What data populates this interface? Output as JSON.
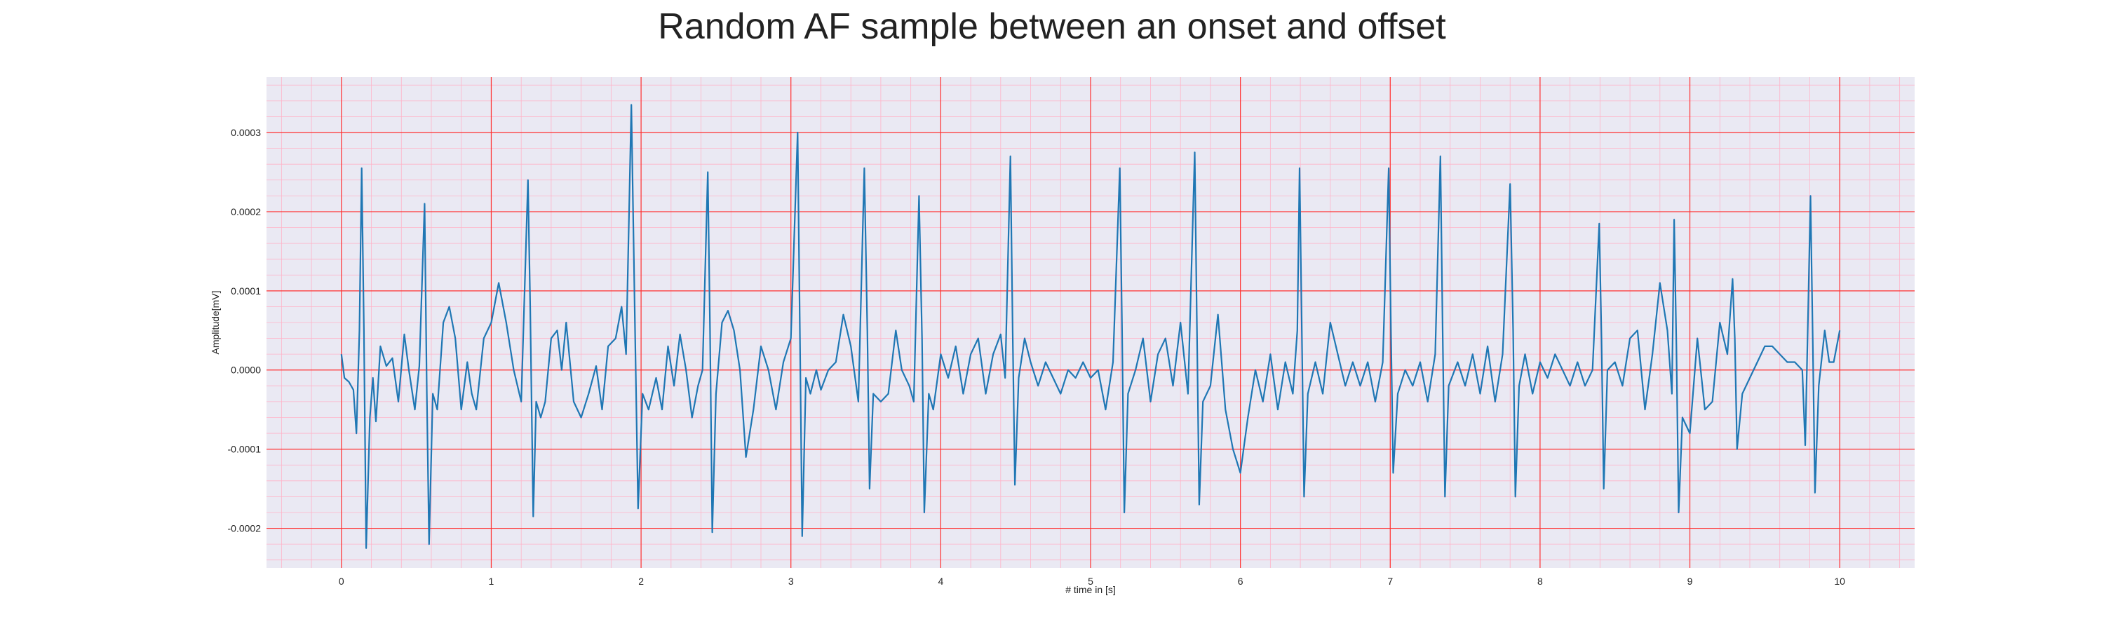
{
  "chart_data": {
    "type": "line",
    "title": "Random AF sample between an onset and offset",
    "xlabel": "# time in [s]",
    "ylabel": "Amplitude[mV]",
    "xlim": [
      -0.5,
      10.5
    ],
    "ylim": [
      -0.00025,
      0.00037
    ],
    "xticks": [
      0,
      1,
      2,
      3,
      4,
      5,
      6,
      7,
      8,
      9,
      10
    ],
    "xtick_labels": [
      "0",
      "1",
      "2",
      "3",
      "4",
      "5",
      "6",
      "7",
      "8",
      "9",
      "10"
    ],
    "yticks": [
      -0.0002,
      -0.0001,
      0.0,
      0.0001,
      0.0002,
      0.0003
    ],
    "ytick_labels": [
      "-0.0002",
      "-0.0001",
      "0.0000",
      "0.0001",
      "0.0002",
      "0.0003"
    ],
    "grid": true,
    "colors": {
      "line": "#1f77b4",
      "major_grid": "#ff3030",
      "minor_grid": "#ffb3c8",
      "background": "#eae9f3"
    },
    "series": [
      {
        "points": [
          [
            0.0,
            2e-05
          ],
          [
            0.02,
            -1e-05
          ],
          [
            0.05,
            -1.5e-05
          ],
          [
            0.08,
            -2.5e-05
          ],
          [
            0.1,
            -8e-05
          ],
          [
            0.12,
            5e-05
          ],
          [
            0.135,
            0.000255
          ],
          [
            0.15,
            5e-05
          ],
          [
            0.165,
            -0.000225
          ],
          [
            0.19,
            -6e-05
          ],
          [
            0.21,
            -1e-05
          ],
          [
            0.23,
            -6.5e-05
          ],
          [
            0.26,
            3e-05
          ],
          [
            0.3,
            5e-06
          ],
          [
            0.34,
            1.5e-05
          ],
          [
            0.38,
            -4e-05
          ],
          [
            0.42,
            4.5e-05
          ],
          [
            0.45,
            0.0
          ],
          [
            0.49,
            -5e-05
          ],
          [
            0.52,
            5e-06
          ],
          [
            0.555,
            0.00021
          ],
          [
            0.57,
            -3e-05
          ],
          [
            0.585,
            -0.00022
          ],
          [
            0.61,
            -3e-05
          ],
          [
            0.64,
            -5e-05
          ],
          [
            0.68,
            6e-05
          ],
          [
            0.72,
            8e-05
          ],
          [
            0.76,
            4e-05
          ],
          [
            0.8,
            -5e-05
          ],
          [
            0.84,
            1e-05
          ],
          [
            0.87,
            -3e-05
          ],
          [
            0.9,
            -5e-05
          ],
          [
            0.95,
            4e-05
          ],
          [
            1.0,
            6e-05
          ],
          [
            1.05,
            0.00011
          ],
          [
            1.1,
            6e-05
          ],
          [
            1.15,
            0.0
          ],
          [
            1.2,
            -4e-05
          ],
          [
            1.245,
            0.00024
          ],
          [
            1.26,
            8e-05
          ],
          [
            1.28,
            -0.000185
          ],
          [
            1.3,
            -4e-05
          ],
          [
            1.33,
            -6e-05
          ],
          [
            1.36,
            -4e-05
          ],
          [
            1.4,
            4e-05
          ],
          [
            1.44,
            5e-05
          ],
          [
            1.47,
            0.0
          ],
          [
            1.5,
            6e-05
          ],
          [
            1.55,
            -4e-05
          ],
          [
            1.6,
            -6e-05
          ],
          [
            1.65,
            -3e-05
          ],
          [
            1.7,
            5e-06
          ],
          [
            1.74,
            -5e-05
          ],
          [
            1.78,
            3e-05
          ],
          [
            1.83,
            4e-05
          ],
          [
            1.87,
            8e-05
          ],
          [
            1.9,
            2e-05
          ],
          [
            1.935,
            0.000335
          ],
          [
            1.96,
            5e-05
          ],
          [
            1.98,
            -0.000175
          ],
          [
            2.01,
            -3e-05
          ],
          [
            2.05,
            -5e-05
          ],
          [
            2.1,
            -1e-05
          ],
          [
            2.14,
            -5e-05
          ],
          [
            2.18,
            3e-05
          ],
          [
            2.22,
            -2e-05
          ],
          [
            2.26,
            4.5e-05
          ],
          [
            2.3,
            0.0
          ],
          [
            2.34,
            -6e-05
          ],
          [
            2.38,
            -2e-05
          ],
          [
            2.41,
            0.0
          ],
          [
            2.445,
            0.00025
          ],
          [
            2.46,
            5e-05
          ],
          [
            2.475,
            -0.000205
          ],
          [
            2.5,
            -3e-05
          ],
          [
            2.54,
            6e-05
          ],
          [
            2.58,
            7.5e-05
          ],
          [
            2.62,
            5e-05
          ],
          [
            2.66,
            0.0
          ],
          [
            2.7,
            -0.00011
          ],
          [
            2.75,
            -5e-05
          ],
          [
            2.8,
            3e-05
          ],
          [
            2.85,
            0.0
          ],
          [
            2.9,
            -5e-05
          ],
          [
            2.95,
            1e-05
          ],
          [
            3.0,
            4e-05
          ],
          [
            3.045,
            0.0003
          ],
          [
            3.06,
            5e-05
          ],
          [
            3.075,
            -0.00021
          ],
          [
            3.1,
            -1e-05
          ],
          [
            3.13,
            -3e-05
          ],
          [
            3.17,
            0.0
          ],
          [
            3.2,
            -2.5e-05
          ],
          [
            3.25,
            0.0
          ],
          [
            3.3,
            1e-05
          ],
          [
            3.35,
            7e-05
          ],
          [
            3.4,
            3e-05
          ],
          [
            3.45,
            -4e-05
          ],
          [
            3.49,
            0.000255
          ],
          [
            3.51,
            5e-05
          ],
          [
            3.525,
            -0.00015
          ],
          [
            3.55,
            -3e-05
          ],
          [
            3.6,
            -4e-05
          ],
          [
            3.65,
            -3e-05
          ],
          [
            3.7,
            5e-05
          ],
          [
            3.74,
            0.0
          ],
          [
            3.79,
            -2e-05
          ],
          [
            3.82,
            -4e-05
          ],
          [
            3.855,
            0.00022
          ],
          [
            3.875,
            4e-05
          ],
          [
            3.89,
            -0.00018
          ],
          [
            3.92,
            -3e-05
          ],
          [
            3.95,
            -5e-05
          ],
          [
            4.0,
            2e-05
          ],
          [
            4.05,
            -1e-05
          ],
          [
            4.1,
            3e-05
          ],
          [
            4.15,
            -3e-05
          ],
          [
            4.2,
            2e-05
          ],
          [
            4.25,
            4e-05
          ],
          [
            4.3,
            -3e-05
          ],
          [
            4.35,
            2e-05
          ],
          [
            4.4,
            4.5e-05
          ],
          [
            4.43,
            -1e-05
          ],
          [
            4.465,
            0.00027
          ],
          [
            4.48,
            5e-05
          ],
          [
            4.495,
            -0.000145
          ],
          [
            4.52,
            -1e-05
          ],
          [
            4.56,
            4e-05
          ],
          [
            4.6,
            1e-05
          ],
          [
            4.65,
            -2e-05
          ],
          [
            4.7,
            1e-05
          ],
          [
            4.75,
            -1e-05
          ],
          [
            4.8,
            -3e-05
          ],
          [
            4.85,
            0.0
          ],
          [
            4.9,
            -1e-05
          ],
          [
            4.95,
            1e-05
          ],
          [
            5.0,
            -1e-05
          ],
          [
            5.05,
            0.0
          ],
          [
            5.1,
            -5e-05
          ],
          [
            5.15,
            1e-05
          ],
          [
            5.195,
            0.000255
          ],
          [
            5.21,
            5e-05
          ],
          [
            5.225,
            -0.00018
          ],
          [
            5.25,
            -3e-05
          ],
          [
            5.3,
            0.0
          ],
          [
            5.35,
            4e-05
          ],
          [
            5.4,
            -4e-05
          ],
          [
            5.45,
            2e-05
          ],
          [
            5.5,
            4e-05
          ],
          [
            5.55,
            -2e-05
          ],
          [
            5.6,
            6e-05
          ],
          [
            5.65,
            -3e-05
          ],
          [
            5.695,
            0.000275
          ],
          [
            5.71,
            5e-05
          ],
          [
            5.725,
            -0.00017
          ],
          [
            5.75,
            -4e-05
          ],
          [
            5.8,
            -2e-05
          ],
          [
            5.85,
            7e-05
          ],
          [
            5.9,
            -5e-05
          ],
          [
            5.95,
            -0.0001
          ],
          [
            6.0,
            -0.00013
          ],
          [
            6.05,
            -6e-05
          ],
          [
            6.1,
            0.0
          ],
          [
            6.15,
            -4e-05
          ],
          [
            6.2,
            2e-05
          ],
          [
            6.25,
            -5e-05
          ],
          [
            6.3,
            1e-05
          ],
          [
            6.35,
            -3e-05
          ],
          [
            6.38,
            5e-05
          ],
          [
            6.395,
            0.000255
          ],
          [
            6.41,
            5e-05
          ],
          [
            6.425,
            -0.00016
          ],
          [
            6.45,
            -3e-05
          ],
          [
            6.5,
            1e-05
          ],
          [
            6.55,
            -3e-05
          ],
          [
            6.6,
            6e-05
          ],
          [
            6.65,
            2e-05
          ],
          [
            6.7,
            -2e-05
          ],
          [
            6.75,
            1e-05
          ],
          [
            6.8,
            -2e-05
          ],
          [
            6.85,
            1e-05
          ],
          [
            6.9,
            -4e-05
          ],
          [
            6.95,
            1e-05
          ],
          [
            6.99,
            0.000255
          ],
          [
            7.005,
            5e-05
          ],
          [
            7.02,
            -0.00013
          ],
          [
            7.05,
            -3e-05
          ],
          [
            7.1,
            0.0
          ],
          [
            7.15,
            -2e-05
          ],
          [
            7.2,
            1e-05
          ],
          [
            7.25,
            -4e-05
          ],
          [
            7.3,
            2e-05
          ],
          [
            7.335,
            0.00027
          ],
          [
            7.35,
            5e-05
          ],
          [
            7.365,
            -0.00016
          ],
          [
            7.39,
            -2e-05
          ],
          [
            7.45,
            1e-05
          ],
          [
            7.5,
            -2e-05
          ],
          [
            7.55,
            2e-05
          ],
          [
            7.6,
            -3e-05
          ],
          [
            7.65,
            3e-05
          ],
          [
            7.7,
            -4e-05
          ],
          [
            7.75,
            2e-05
          ],
          [
            7.8,
            0.000235
          ],
          [
            7.82,
            5e-05
          ],
          [
            7.835,
            -0.00016
          ],
          [
            7.86,
            -2e-05
          ],
          [
            7.9,
            2e-05
          ],
          [
            7.95,
            -3e-05
          ],
          [
            8.0,
            1e-05
          ],
          [
            8.05,
            -1e-05
          ],
          [
            8.1,
            2e-05
          ],
          [
            8.15,
            0.0
          ],
          [
            8.2,
            -2e-05
          ],
          [
            8.25,
            1e-05
          ],
          [
            8.3,
            -2e-05
          ],
          [
            8.35,
            0.0
          ],
          [
            8.395,
            0.000185
          ],
          [
            8.41,
            4e-05
          ],
          [
            8.425,
            -0.00015
          ],
          [
            8.45,
            0.0
          ],
          [
            8.5,
            1e-05
          ],
          [
            8.55,
            -2e-05
          ],
          [
            8.6,
            4e-05
          ],
          [
            8.65,
            5e-05
          ],
          [
            8.7,
            -5e-05
          ],
          [
            8.75,
            2e-05
          ],
          [
            8.8,
            0.00011
          ],
          [
            8.85,
            5e-05
          ],
          [
            8.88,
            -3e-05
          ],
          [
            8.895,
            0.00019
          ],
          [
            8.91,
            3e-05
          ],
          [
            8.925,
            -0.00018
          ],
          [
            8.95,
            -6e-05
          ],
          [
            9.0,
            -8e-05
          ],
          [
            9.05,
            4e-05
          ],
          [
            9.1,
            -5e-05
          ],
          [
            9.15,
            -4e-05
          ],
          [
            9.2,
            6e-05
          ],
          [
            9.25,
            2e-05
          ],
          [
            9.285,
            0.000115
          ],
          [
            9.3,
            4e-05
          ],
          [
            9.315,
            -0.0001
          ],
          [
            9.35,
            -3e-05
          ],
          [
            9.4,
            -1e-05
          ],
          [
            9.45,
            1e-05
          ],
          [
            9.5,
            3e-05
          ],
          [
            9.55,
            3e-05
          ],
          [
            9.6,
            2e-05
          ],
          [
            9.65,
            1e-05
          ],
          [
            9.7,
            1e-05
          ],
          [
            9.75,
            0.0
          ],
          [
            9.77,
            -9.5e-05
          ],
          [
            9.79,
            8e-05
          ],
          [
            9.805,
            0.00022
          ],
          [
            9.82,
            4e-05
          ],
          [
            9.835,
            -0.000155
          ],
          [
            9.86,
            -2e-05
          ],
          [
            9.9,
            5e-05
          ],
          [
            9.93,
            1e-05
          ],
          [
            9.96,
            1e-05
          ],
          [
            9.98,
            3e-05
          ],
          [
            10.0,
            5e-05
          ]
        ]
      }
    ]
  }
}
